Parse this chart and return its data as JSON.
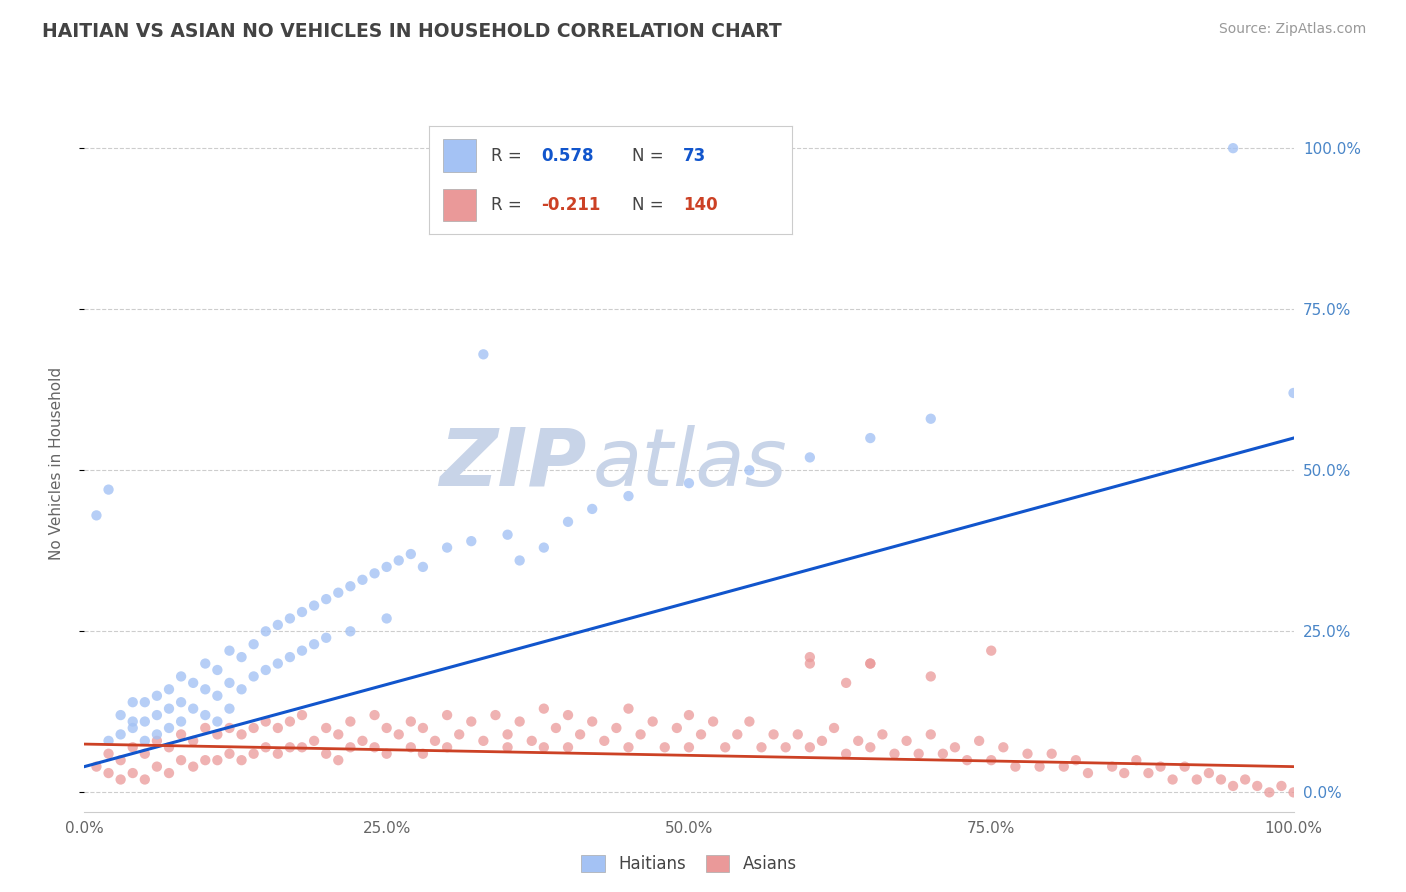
{
  "title": "HAITIAN VS ASIAN NO VEHICLES IN HOUSEHOLD CORRELATION CHART",
  "source": "Source: ZipAtlas.com",
  "ylabel": "No Vehicles in Household",
  "xlim": [
    0.0,
    1.0
  ],
  "ylim": [
    -0.03,
    1.05
  ],
  "x_tick_vals": [
    0.0,
    0.25,
    0.5,
    0.75,
    1.0
  ],
  "x_tick_labels": [
    "0.0%",
    "25.0%",
    "50.0%",
    "75.0%",
    "100.0%"
  ],
  "y_tick_vals": [
    0.0,
    0.25,
    0.5,
    0.75,
    1.0
  ],
  "y_tick_labels": [
    "0.0%",
    "25.0%",
    "50.0%",
    "75.0%",
    "100.0%"
  ],
  "haitian_color": "#a4c2f4",
  "asian_color": "#ea9999",
  "haitian_line_color": "#1155cc",
  "asian_line_color": "#cc4125",
  "legend_haitian_label": "Haitians",
  "legend_asian_label": "Asians",
  "R_haitian": 0.578,
  "N_haitian": 73,
  "R_asian": -0.211,
  "N_asian": 140,
  "watermark_zip": "ZIP",
  "watermark_atlas": "atlas",
  "watermark_color": "#c8d4e8",
  "background_color": "#ffffff",
  "grid_color": "#c8c8c8",
  "title_color": "#434343",
  "source_color": "#999999",
  "haitian_line_start_y": 0.04,
  "haitian_line_end_y": 0.55,
  "asian_line_start_y": 0.075,
  "asian_line_end_y": 0.04,
  "haitian_x": [
    0.01,
    0.02,
    0.02,
    0.03,
    0.03,
    0.04,
    0.04,
    0.04,
    0.05,
    0.05,
    0.05,
    0.06,
    0.06,
    0.06,
    0.07,
    0.07,
    0.07,
    0.08,
    0.08,
    0.08,
    0.09,
    0.09,
    0.1,
    0.1,
    0.1,
    0.11,
    0.11,
    0.11,
    0.12,
    0.12,
    0.12,
    0.13,
    0.13,
    0.14,
    0.14,
    0.15,
    0.15,
    0.16,
    0.16,
    0.17,
    0.17,
    0.18,
    0.18,
    0.19,
    0.19,
    0.2,
    0.2,
    0.21,
    0.22,
    0.22,
    0.23,
    0.24,
    0.25,
    0.25,
    0.26,
    0.27,
    0.28,
    0.3,
    0.32,
    0.33,
    0.35,
    0.36,
    0.38,
    0.4,
    0.42,
    0.45,
    0.5,
    0.55,
    0.6,
    0.65,
    0.7,
    0.95,
    1.0
  ],
  "haitian_y": [
    0.43,
    0.47,
    0.08,
    0.09,
    0.12,
    0.1,
    0.14,
    0.11,
    0.14,
    0.11,
    0.08,
    0.15,
    0.12,
    0.09,
    0.16,
    0.13,
    0.1,
    0.18,
    0.14,
    0.11,
    0.17,
    0.13,
    0.2,
    0.16,
    0.12,
    0.19,
    0.15,
    0.11,
    0.22,
    0.17,
    0.13,
    0.21,
    0.16,
    0.23,
    0.18,
    0.25,
    0.19,
    0.26,
    0.2,
    0.27,
    0.21,
    0.28,
    0.22,
    0.29,
    0.23,
    0.3,
    0.24,
    0.31,
    0.32,
    0.25,
    0.33,
    0.34,
    0.35,
    0.27,
    0.36,
    0.37,
    0.35,
    0.38,
    0.39,
    0.68,
    0.4,
    0.36,
    0.38,
    0.42,
    0.44,
    0.46,
    0.48,
    0.5,
    0.52,
    0.55,
    0.58,
    1.0,
    0.62
  ],
  "asian_x": [
    0.01,
    0.02,
    0.02,
    0.03,
    0.03,
    0.04,
    0.04,
    0.05,
    0.05,
    0.06,
    0.06,
    0.07,
    0.07,
    0.08,
    0.08,
    0.09,
    0.09,
    0.1,
    0.1,
    0.11,
    0.11,
    0.12,
    0.12,
    0.13,
    0.13,
    0.14,
    0.14,
    0.15,
    0.15,
    0.16,
    0.16,
    0.17,
    0.17,
    0.18,
    0.18,
    0.19,
    0.2,
    0.2,
    0.21,
    0.21,
    0.22,
    0.22,
    0.23,
    0.24,
    0.24,
    0.25,
    0.25,
    0.26,
    0.27,
    0.27,
    0.28,
    0.28,
    0.29,
    0.3,
    0.3,
    0.31,
    0.32,
    0.33,
    0.34,
    0.35,
    0.35,
    0.36,
    0.37,
    0.38,
    0.38,
    0.39,
    0.4,
    0.4,
    0.41,
    0.42,
    0.43,
    0.44,
    0.45,
    0.45,
    0.46,
    0.47,
    0.48,
    0.49,
    0.5,
    0.5,
    0.51,
    0.52,
    0.53,
    0.54,
    0.55,
    0.56,
    0.57,
    0.58,
    0.59,
    0.6,
    0.6,
    0.61,
    0.62,
    0.63,
    0.64,
    0.65,
    0.65,
    0.66,
    0.67,
    0.68,
    0.69,
    0.7,
    0.71,
    0.72,
    0.73,
    0.74,
    0.75,
    0.76,
    0.77,
    0.78,
    0.79,
    0.8,
    0.81,
    0.82,
    0.83,
    0.85,
    0.86,
    0.87,
    0.88,
    0.89,
    0.9,
    0.91,
    0.92,
    0.93,
    0.94,
    0.95,
    0.96,
    0.97,
    0.98,
    0.99,
    1.0,
    0.6,
    0.63,
    0.65,
    0.7,
    0.75
  ],
  "asian_y": [
    0.04,
    0.06,
    0.03,
    0.05,
    0.02,
    0.07,
    0.03,
    0.06,
    0.02,
    0.08,
    0.04,
    0.07,
    0.03,
    0.09,
    0.05,
    0.08,
    0.04,
    0.1,
    0.05,
    0.09,
    0.05,
    0.1,
    0.06,
    0.09,
    0.05,
    0.1,
    0.06,
    0.11,
    0.07,
    0.1,
    0.06,
    0.11,
    0.07,
    0.12,
    0.07,
    0.08,
    0.1,
    0.06,
    0.09,
    0.05,
    0.11,
    0.07,
    0.08,
    0.12,
    0.07,
    0.1,
    0.06,
    0.09,
    0.11,
    0.07,
    0.1,
    0.06,
    0.08,
    0.12,
    0.07,
    0.09,
    0.11,
    0.08,
    0.12,
    0.07,
    0.09,
    0.11,
    0.08,
    0.13,
    0.07,
    0.1,
    0.12,
    0.07,
    0.09,
    0.11,
    0.08,
    0.1,
    0.13,
    0.07,
    0.09,
    0.11,
    0.07,
    0.1,
    0.12,
    0.07,
    0.09,
    0.11,
    0.07,
    0.09,
    0.11,
    0.07,
    0.09,
    0.07,
    0.09,
    0.2,
    0.07,
    0.08,
    0.1,
    0.06,
    0.08,
    0.2,
    0.07,
    0.09,
    0.06,
    0.08,
    0.06,
    0.09,
    0.06,
    0.07,
    0.05,
    0.08,
    0.05,
    0.07,
    0.04,
    0.06,
    0.04,
    0.06,
    0.04,
    0.05,
    0.03,
    0.04,
    0.03,
    0.05,
    0.03,
    0.04,
    0.02,
    0.04,
    0.02,
    0.03,
    0.02,
    0.01,
    0.02,
    0.01,
    0.0,
    0.01,
    0.0,
    0.21,
    0.17,
    0.2,
    0.18,
    0.22
  ]
}
